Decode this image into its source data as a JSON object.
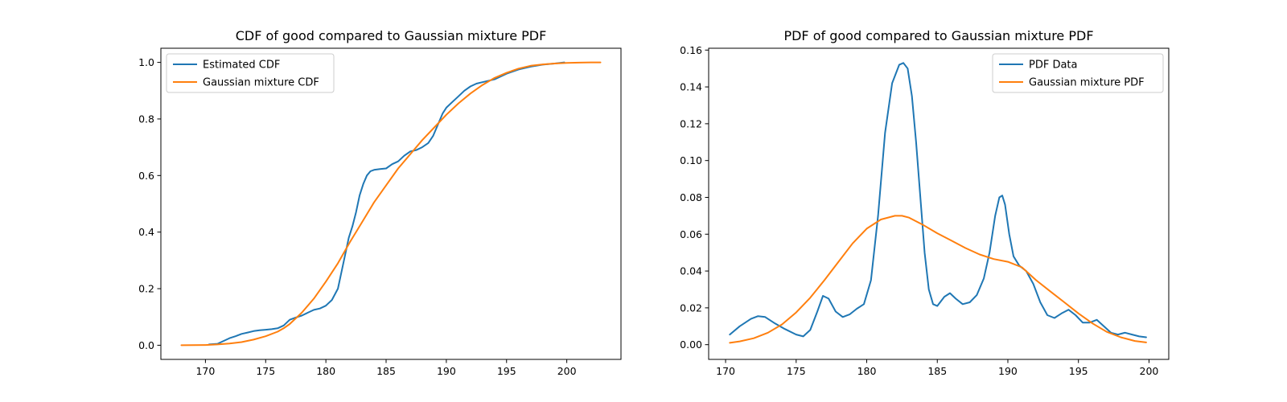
{
  "colors": {
    "blue": "#1f77b4",
    "orange": "#ff7f0e"
  },
  "chart_data": [
    {
      "type": "line",
      "title": "CDF of good compared to Gaussian mixture PDF",
      "xlabel": "",
      "ylabel": "",
      "xlim": [
        166.3,
        204.5
      ],
      "ylim": [
        -0.05,
        1.05
      ],
      "xticks": [
        170,
        175,
        180,
        185,
        190,
        195,
        200
      ],
      "xtick_labels": [
        "170",
        "175",
        "180",
        "185",
        "190",
        "195",
        "200"
      ],
      "yticks": [
        0.0,
        0.2,
        0.4,
        0.6,
        0.8,
        1.0
      ],
      "ytick_labels": [
        "0.0",
        "0.2",
        "0.4",
        "0.6",
        "0.8",
        "1.0"
      ],
      "grid": false,
      "legend_position": "upper-left",
      "series": [
        {
          "name": "Estimated CDF",
          "color": "#1f77b4",
          "x": [
            170.3,
            171.0,
            171.5,
            172.0,
            172.5,
            173.0,
            173.5,
            174.0,
            174.5,
            175.0,
            175.5,
            176.0,
            176.5,
            177.0,
            177.5,
            178.0,
            178.5,
            179.0,
            179.5,
            180.0,
            180.5,
            181.0,
            181.3,
            181.6,
            181.9,
            182.2,
            182.5,
            182.8,
            183.1,
            183.4,
            183.7,
            184.0,
            184.5,
            185.0,
            185.5,
            186.0,
            186.5,
            187.0,
            187.5,
            188.0,
            188.5,
            188.9,
            189.3,
            189.7,
            190.0,
            190.5,
            191.0,
            191.5,
            192.0,
            192.5,
            193.0,
            194.0,
            195.0,
            196.0,
            197.0,
            198.0,
            199.0,
            199.8
          ],
          "y": [
            0.003,
            0.005,
            0.015,
            0.025,
            0.032,
            0.04,
            0.045,
            0.05,
            0.053,
            0.055,
            0.057,
            0.06,
            0.07,
            0.09,
            0.098,
            0.105,
            0.115,
            0.125,
            0.13,
            0.14,
            0.16,
            0.2,
            0.26,
            0.32,
            0.38,
            0.42,
            0.47,
            0.53,
            0.57,
            0.6,
            0.615,
            0.62,
            0.623,
            0.625,
            0.64,
            0.65,
            0.67,
            0.685,
            0.69,
            0.7,
            0.715,
            0.74,
            0.78,
            0.82,
            0.84,
            0.86,
            0.88,
            0.9,
            0.915,
            0.925,
            0.93,
            0.94,
            0.96,
            0.975,
            0.985,
            0.992,
            0.996,
            1.0
          ]
        },
        {
          "name": "Gaussian mixture CDF",
          "color": "#ff7f0e",
          "x": [
            168.0,
            170.0,
            171.0,
            172.0,
            173.0,
            174.0,
            175.0,
            176.0,
            176.5,
            177.0,
            178.0,
            179.0,
            180.0,
            181.0,
            182.0,
            183.0,
            184.0,
            185.0,
            186.0,
            187.0,
            188.0,
            189.0,
            190.0,
            191.0,
            192.0,
            193.0,
            194.0,
            195.0,
            196.0,
            197.0,
            198.0,
            199.0,
            200.0,
            201.0,
            202.0,
            202.8
          ],
          "y": [
            0.0,
            0.001,
            0.003,
            0.006,
            0.011,
            0.02,
            0.032,
            0.048,
            0.06,
            0.075,
            0.115,
            0.165,
            0.225,
            0.29,
            0.365,
            0.435,
            0.505,
            0.565,
            0.625,
            0.675,
            0.725,
            0.77,
            0.815,
            0.855,
            0.89,
            0.92,
            0.945,
            0.963,
            0.978,
            0.988,
            0.993,
            0.996,
            0.998,
            0.999,
            1.0,
            1.0
          ]
        }
      ]
    },
    {
      "type": "line",
      "title": "PDF of good compared to Gaussian mixture PDF",
      "xlabel": "",
      "ylabel": "",
      "xlim": [
        168.8,
        201.4
      ],
      "ylim": [
        -0.008,
        0.161
      ],
      "xticks": [
        170,
        175,
        180,
        185,
        190,
        195,
        200
      ],
      "xtick_labels": [
        "170",
        "175",
        "180",
        "185",
        "190",
        "195",
        "200"
      ],
      "yticks": [
        0.0,
        0.02,
        0.04,
        0.06,
        0.08,
        0.1,
        0.12,
        0.14,
        0.16
      ],
      "ytick_labels": [
        "0.00",
        "0.02",
        "0.04",
        "0.06",
        "0.08",
        "0.10",
        "0.12",
        "0.14",
        "0.16"
      ],
      "grid": false,
      "legend_position": "upper-right",
      "series": [
        {
          "name": "PDF Data",
          "color": "#1f77b4",
          "x": [
            170.3,
            171.0,
            171.8,
            172.3,
            172.8,
            173.5,
            174.2,
            175.0,
            175.5,
            176.0,
            176.5,
            176.9,
            177.3,
            177.8,
            178.3,
            178.8,
            179.3,
            179.8,
            180.3,
            180.8,
            181.3,
            181.8,
            182.3,
            182.6,
            182.9,
            183.2,
            183.5,
            183.8,
            184.1,
            184.4,
            184.7,
            185.0,
            185.5,
            185.9,
            186.3,
            186.8,
            187.3,
            187.8,
            188.3,
            188.7,
            189.1,
            189.4,
            189.6,
            189.8,
            190.1,
            190.4,
            190.8,
            191.3,
            191.8,
            192.3,
            192.8,
            193.3,
            193.8,
            194.3,
            194.8,
            195.3,
            195.8,
            196.3,
            196.8,
            197.3,
            197.8,
            198.3,
            198.8,
            199.3,
            199.8
          ],
          "y": [
            0.0055,
            0.01,
            0.014,
            0.0155,
            0.015,
            0.0115,
            0.0085,
            0.0055,
            0.0045,
            0.008,
            0.018,
            0.0265,
            0.025,
            0.018,
            0.015,
            0.0165,
            0.0195,
            0.022,
            0.035,
            0.07,
            0.115,
            0.142,
            0.152,
            0.153,
            0.15,
            0.135,
            0.11,
            0.08,
            0.05,
            0.03,
            0.022,
            0.021,
            0.026,
            0.028,
            0.025,
            0.022,
            0.023,
            0.027,
            0.036,
            0.05,
            0.07,
            0.08,
            0.081,
            0.076,
            0.06,
            0.048,
            0.043,
            0.04,
            0.033,
            0.023,
            0.016,
            0.0145,
            0.017,
            0.019,
            0.016,
            0.012,
            0.012,
            0.0135,
            0.01,
            0.0065,
            0.0055,
            0.0065,
            0.0055,
            0.0045,
            0.004
          ]
        },
        {
          "name": "Gaussian mixture PDF",
          "color": "#ff7f0e",
          "x": [
            170.3,
            171.0,
            172.0,
            173.0,
            174.0,
            175.0,
            176.0,
            177.0,
            178.0,
            179.0,
            180.0,
            181.0,
            182.0,
            182.5,
            183.0,
            184.0,
            185.0,
            186.0,
            187.0,
            188.0,
            189.0,
            190.0,
            191.0,
            192.0,
            193.0,
            194.0,
            195.0,
            196.0,
            197.0,
            198.0,
            199.0,
            199.8
          ],
          "y": [
            0.001,
            0.0018,
            0.0035,
            0.0065,
            0.011,
            0.0175,
            0.0255,
            0.035,
            0.045,
            0.055,
            0.063,
            0.068,
            0.07,
            0.07,
            0.069,
            0.065,
            0.0605,
            0.0565,
            0.0525,
            0.049,
            0.0465,
            0.045,
            0.042,
            0.035,
            0.029,
            0.023,
            0.017,
            0.0115,
            0.007,
            0.004,
            0.002,
            0.0012
          ]
        }
      ]
    }
  ]
}
